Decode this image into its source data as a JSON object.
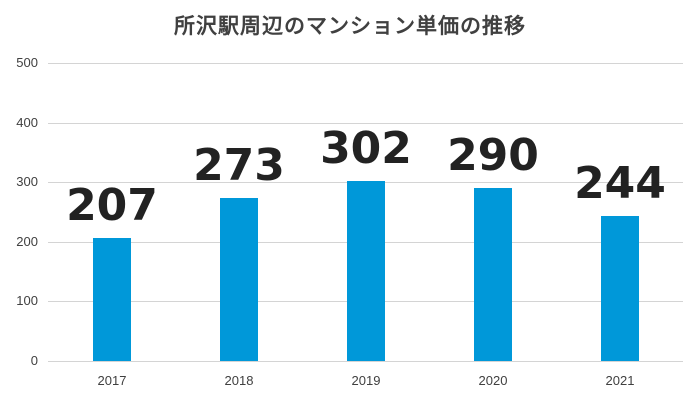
{
  "chart_data": {
    "type": "bar",
    "title": "所沢駅周辺のマンション単価の推移",
    "categories": [
      "2017",
      "2018",
      "2019",
      "2020",
      "2021"
    ],
    "values": [
      207,
      273,
      302,
      290,
      244
    ],
    "data_labels": [
      "207",
      "273",
      "302",
      "290",
      "244"
    ],
    "xlabel": "",
    "ylabel": "",
    "ylim": [
      0,
      500
    ],
    "yticks": [
      "0",
      "100",
      "200",
      "300",
      "400",
      "500"
    ],
    "grid": true,
    "legend": "none",
    "bar_color": "#0098d9"
  }
}
